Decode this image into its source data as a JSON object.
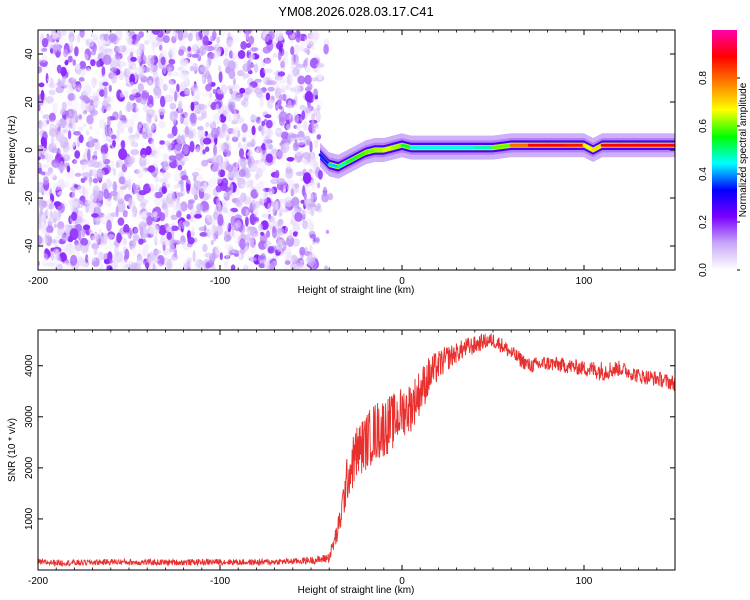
{
  "title": "YM08.2026.028.03.17.C41",
  "chart_data": [
    {
      "type": "heatmap",
      "xlabel": "Height of straight line (km)",
      "ylabel": "Frequency (Hz)",
      "xlim": [
        -200,
        150
      ],
      "ylim": [
        -50,
        50
      ],
      "xticks": [
        -200,
        -100,
        0,
        100
      ],
      "yticks": [
        -40,
        -20,
        0,
        20,
        40
      ],
      "colorbar": {
        "label": "Normalized spectral amplitude",
        "range": [
          0,
          1
        ],
        "ticks": [
          0.0,
          0.2,
          0.4,
          0.6,
          0.8
        ],
        "tick_labels": [
          "0.0",
          "0.2",
          "0.4",
          "0.6",
          "0.8"
        ],
        "colormap": [
          "#ffffff",
          "#c8a8f8",
          "#7a00ff",
          "#0000ff",
          "#00ffff",
          "#00ff00",
          "#ffff00",
          "#ff8000",
          "#ff0000",
          "#ff00aa"
        ]
      },
      "noise_region_x": [
        -200,
        -45
      ],
      "signal_ridge": {
        "x": [
          -45,
          -40,
          -35,
          -30,
          -25,
          -20,
          -15,
          -10,
          -5,
          0,
          5,
          10,
          20,
          30,
          40,
          50,
          60,
          70,
          80,
          90,
          100,
          105,
          110,
          120,
          130,
          150
        ],
        "frequency": [
          -2,
          -6,
          -7,
          -5,
          -3,
          -1,
          0,
          0,
          1,
          2,
          1,
          1,
          1,
          1,
          1,
          1,
          2,
          2,
          2,
          2,
          2,
          0,
          2,
          2,
          2,
          2
        ],
        "peak_amplitude": [
          0.3,
          0.4,
          0.45,
          0.5,
          0.55,
          0.6,
          0.6,
          0.65,
          0.65,
          0.6,
          0.45,
          0.45,
          0.45,
          0.45,
          0.45,
          0.5,
          0.7,
          0.9,
          0.9,
          0.9,
          0.85,
          0.5,
          0.9,
          0.9,
          0.9,
          0.9
        ]
      }
    },
    {
      "type": "line",
      "xlabel": "Height of straight line (km)",
      "ylabel": "SNR (10 * v/v)",
      "xlim": [
        -200,
        150
      ],
      "ylim": [
        0,
        4700
      ],
      "xticks": [
        -200,
        -100,
        0,
        100
      ],
      "yticks": [
        1000,
        2000,
        3000,
        4000
      ],
      "line_color": "#e8312f",
      "series": [
        {
          "x": [
            -200,
            -180,
            -160,
            -140,
            -120,
            -100,
            -80,
            -60,
            -45,
            -40,
            -35,
            -33,
            -30,
            -28,
            -25,
            -20,
            -15,
            -10,
            -5,
            0,
            5,
            10,
            15,
            20,
            25,
            30,
            35,
            40,
            45,
            50,
            55,
            60,
            70,
            80,
            90,
            100,
            110,
            120,
            130,
            140,
            150
          ],
          "values": [
            150,
            140,
            160,
            150,
            150,
            160,
            150,
            170,
            200,
            250,
            800,
            1200,
            1800,
            2000,
            2300,
            2500,
            2700,
            2800,
            2900,
            3100,
            3200,
            3500,
            3800,
            4000,
            4150,
            4250,
            4350,
            4400,
            4480,
            4500,
            4400,
            4250,
            4000,
            4050,
            4000,
            3950,
            3900,
            3950,
            3800,
            3750,
            3650
          ],
          "spread": [
            60,
            60,
            60,
            60,
            60,
            60,
            60,
            60,
            80,
            100,
            250,
            350,
            450,
            500,
            550,
            550,
            600,
            600,
            550,
            500,
            500,
            450,
            400,
            300,
            250,
            200,
            200,
            180,
            150,
            150,
            150,
            150,
            150,
            150,
            150,
            150,
            200,
            150,
            150,
            150,
            150
          ]
        }
      ]
    }
  ]
}
